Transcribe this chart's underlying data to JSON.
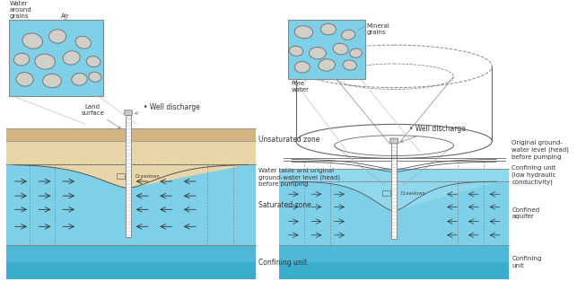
{
  "bg_color": "#ffffff",
  "left": {
    "colors": {
      "land": "#d4b483",
      "unsat": "#e8d5a8",
      "sat": "#7ecfe8",
      "conf": "#4db8d8",
      "darker_conf": "#3aaccc",
      "grain_fill": "#d0cfc8",
      "grain_edge": "#777777",
      "inset_bg": "#7ecfe8",
      "inset_air": "#ffffff",
      "arrow": "#333333"
    },
    "labels": {
      "land_surface": "Land\nsurface",
      "well_discharge": "Well discharge",
      "unsaturated_zone": "Unsaturated zone",
      "water_table": "Water table and original\nground-water level (head)\nbefore pumping",
      "saturated_zone": "Saturated zone",
      "confining_unit": "Confining unit",
      "drawdown": "Drawdown",
      "water_around_grains": "Water\naround\ngrains",
      "air": "Air"
    }
  },
  "right": {
    "colors": {
      "conf_top": "#90d8ee",
      "aquifer": "#7ecfe8",
      "conf_bot": "#4db8d8",
      "grain_fill": "#d0cfc8",
      "grain_edge": "#777777",
      "inset_bg": "#7ecfe8",
      "arrow": "#333333"
    },
    "labels": {
      "well_discharge": "Well discharge",
      "original_gw": "Original ground-\nwater level (head)\nbefore pumping",
      "confining_unit_top": "Confining unit\n(low hydraulic\nconductivity)",
      "confined_aquifer": "Confined\naquifer",
      "confining_unit_bottom": "Confining\nunit",
      "drawdown": "Drawdown",
      "mineral_grains": "Mineral\ngrains",
      "pore_water": "Pore\nwater"
    }
  }
}
